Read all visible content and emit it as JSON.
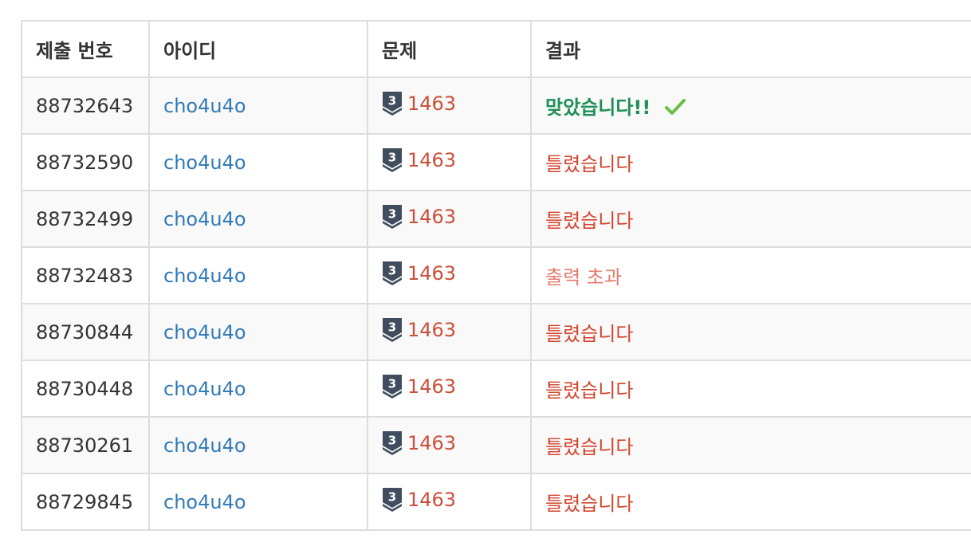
{
  "table": {
    "headers": {
      "submission_id": "제출 번호",
      "user_id": "아이디",
      "problem": "문제",
      "result": "결과"
    },
    "colors": {
      "accepted": "#1f8f55",
      "wrong_answer": "#d2452d",
      "output_limit_exceeded": "#e57b6f",
      "user_link": "#337ab7",
      "problem_link": "#c9503a",
      "tier_badge": "#3f4d5f"
    },
    "rows": [
      {
        "submission_id": "88732643",
        "user_id": "cho4u4o",
        "problem_tier_icon": "tier-badge-icon",
        "problem_tier": "3",
        "problem_id": "1463",
        "result": "맞았습니다!!",
        "result_type": "accepted",
        "result_icon": "check-icon"
      },
      {
        "submission_id": "88732590",
        "user_id": "cho4u4o",
        "problem_tier_icon": "tier-badge-icon",
        "problem_tier": "3",
        "problem_id": "1463",
        "result": "틀렸습니다",
        "result_type": "wrong_answer"
      },
      {
        "submission_id": "88732499",
        "user_id": "cho4u4o",
        "problem_tier_icon": "tier-badge-icon",
        "problem_tier": "3",
        "problem_id": "1463",
        "result": "틀렸습니다",
        "result_type": "wrong_answer"
      },
      {
        "submission_id": "88732483",
        "user_id": "cho4u4o",
        "problem_tier_icon": "tier-badge-icon",
        "problem_tier": "3",
        "problem_id": "1463",
        "result": "출력 초과",
        "result_type": "output_limit_exceeded"
      },
      {
        "submission_id": "88730844",
        "user_id": "cho4u4o",
        "problem_tier_icon": "tier-badge-icon",
        "problem_tier": "3",
        "problem_id": "1463",
        "result": "틀렸습니다",
        "result_type": "wrong_answer"
      },
      {
        "submission_id": "88730448",
        "user_id": "cho4u4o",
        "problem_tier_icon": "tier-badge-icon",
        "problem_tier": "3",
        "problem_id": "1463",
        "result": "틀렸습니다",
        "result_type": "wrong_answer"
      },
      {
        "submission_id": "88730261",
        "user_id": "cho4u4o",
        "problem_tier_icon": "tier-badge-icon",
        "problem_tier": "3",
        "problem_id": "1463",
        "result": "틀렸습니다",
        "result_type": "wrong_answer"
      },
      {
        "submission_id": "88729845",
        "user_id": "cho4u4o",
        "problem_tier_icon": "tier-badge-icon",
        "problem_tier": "3",
        "problem_id": "1463",
        "result": "틀렸습니다",
        "result_type": "wrong_answer"
      }
    ]
  }
}
